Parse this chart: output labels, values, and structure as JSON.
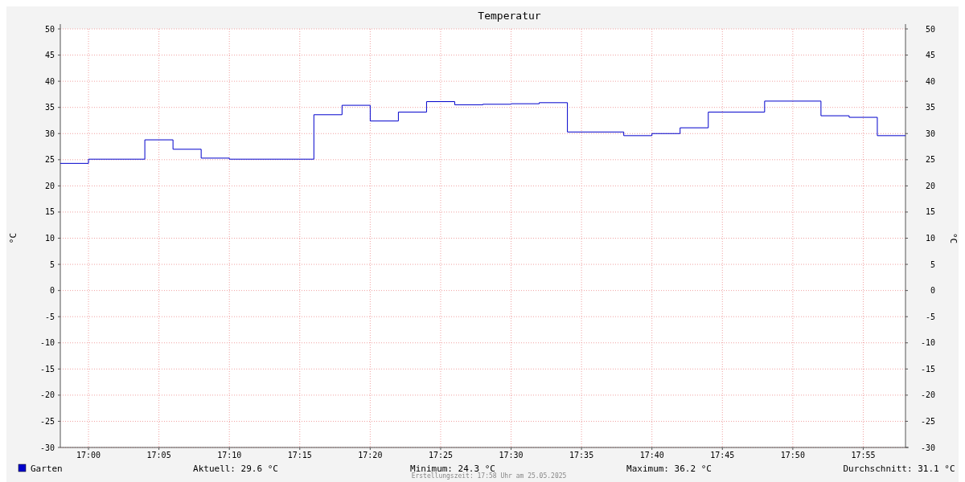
{
  "chart_data": {
    "type": "step",
    "title": "Temperatur",
    "ylabel": "°C",
    "y2label": "°C",
    "x": [
      "2025-05-25T16:58",
      "2025-05-25T17:00",
      "2025-05-25T17:04",
      "2025-05-25T17:06",
      "2025-05-25T17:08",
      "2025-05-25T17:10",
      "2025-05-25T17:16",
      "2025-05-25T17:18",
      "2025-05-25T17:20",
      "2025-05-25T17:22",
      "2025-05-25T17:24",
      "2025-05-25T17:26",
      "2025-05-25T17:28",
      "2025-05-25T17:30",
      "2025-05-25T17:32",
      "2025-05-25T17:34",
      "2025-05-25T17:38",
      "2025-05-25T17:40",
      "2025-05-25T17:42",
      "2025-05-25T17:44",
      "2025-05-25T17:48",
      "2025-05-25T17:52",
      "2025-05-25T17:54",
      "2025-05-25T17:56",
      "2025-05-25T17:58"
    ],
    "series": [
      {
        "name": "Garten",
        "color": "#0000cc",
        "values": [
          24.3,
          25.1,
          28.8,
          27.0,
          25.3,
          25.1,
          33.6,
          35.4,
          32.4,
          34.1,
          36.1,
          35.5,
          35.6,
          35.7,
          35.9,
          30.3,
          29.6,
          30.0,
          31.1,
          34.1,
          36.2,
          33.4,
          33.1,
          29.6,
          29.6
        ]
      }
    ],
    "xlim": [
      "2025-05-25T16:58",
      "2025-05-25T17:58"
    ],
    "xticks": [
      {
        "value": "2025-05-25T17:00",
        "label": "17:00"
      },
      {
        "value": "2025-05-25T17:05",
        "label": "17:05"
      },
      {
        "value": "2025-05-25T17:10",
        "label": "17:10"
      },
      {
        "value": "2025-05-25T17:15",
        "label": "17:15"
      },
      {
        "value": "2025-05-25T17:20",
        "label": "17:20"
      },
      {
        "value": "2025-05-25T17:25",
        "label": "17:25"
      },
      {
        "value": "2025-05-25T17:30",
        "label": "17:30"
      },
      {
        "value": "2025-05-25T17:35",
        "label": "17:35"
      },
      {
        "value": "2025-05-25T17:40",
        "label": "17:40"
      },
      {
        "value": "2025-05-25T17:45",
        "label": "17:45"
      },
      {
        "value": "2025-05-25T17:50",
        "label": "17:50"
      },
      {
        "value": "2025-05-25T17:55",
        "label": "17:55"
      }
    ],
    "ylim": [
      -30,
      50
    ],
    "yticks": [
      -30,
      -25,
      -20,
      -15,
      -10,
      -5,
      0,
      5,
      10,
      15,
      20,
      25,
      30,
      35,
      40,
      45,
      50
    ],
    "y2lim": [
      -30,
      50
    ],
    "y2ticks": [
      -30,
      -25,
      -20,
      -15,
      -10,
      -5,
      0,
      5,
      10,
      15,
      20,
      25,
      30,
      35,
      40,
      45,
      50
    ],
    "grid": true,
    "legend": "bottom left",
    "line_style": "solid",
    "annotations": [
      "Aktuell: 29.6 °C",
      "Minimum: 24.3 °C",
      "Maximum: 36.2 °C",
      "Durchschnitt: 31.1 °C",
      "Erstellungszeit: 17:58 Uhr am 25.05.2025"
    ]
  }
}
